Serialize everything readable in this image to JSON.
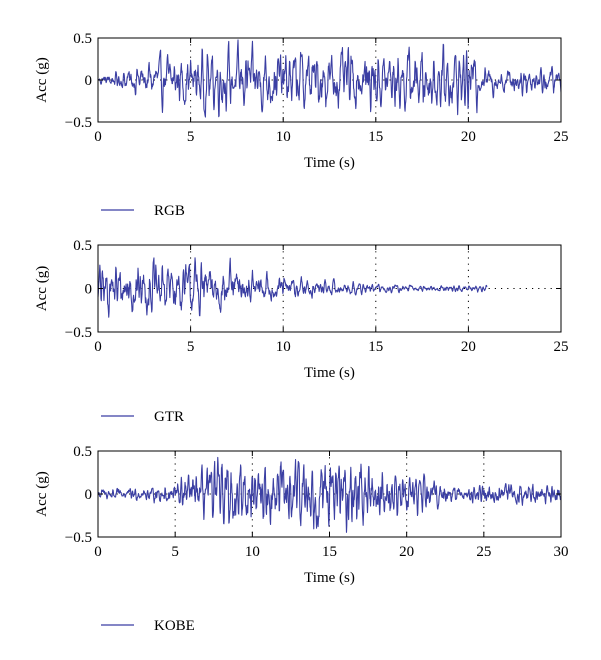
{
  "chart_data": [
    {
      "type": "line",
      "series": [
        {
          "name": "RGB",
          "color": "#3b3fa3",
          "duration": 25,
          "amplitude_profile": "uniform",
          "peak": 0.5
        }
      ],
      "xlabel": "Time (s)",
      "ylabel": "Acc (g)",
      "xlim": [
        0,
        25
      ],
      "ylim": [
        -0.5,
        0.5
      ],
      "xticks": [
        "0",
        "5",
        "10",
        "15",
        "20",
        "25"
      ],
      "yticks": [
        "0.5",
        "0",
        "−0.5"
      ],
      "grid": "dotted-vertical",
      "legend": "below"
    },
    {
      "type": "line",
      "series": [
        {
          "name": "GTR",
          "color": "#3b3fa3",
          "duration": 21,
          "amplitude_profile": "decaying",
          "peak": 0.45
        }
      ],
      "xlabel": "Time (s)",
      "ylabel": "Acc (g)",
      "xlim": [
        0,
        25
      ],
      "ylim": [
        -0.5,
        0.5
      ],
      "xticks": [
        "0",
        "5",
        "10",
        "15",
        "20",
        "25"
      ],
      "yticks": [
        "0.5",
        "0",
        "−0.5"
      ],
      "grid": "dotted-vertical",
      "legend": "below"
    },
    {
      "type": "line",
      "series": [
        {
          "name": "KOBE",
          "color": "#3b3fa3",
          "duration": 30,
          "amplitude_profile": "central-burst",
          "peak": 0.5
        }
      ],
      "xlabel": "Time (s)",
      "ylabel": "Acc (g)",
      "xlim": [
        0,
        30
      ],
      "ylim": [
        -0.5,
        0.5
      ],
      "xticks": [
        "0",
        "5",
        "10",
        "15",
        "20",
        "25",
        "30"
      ],
      "yticks": [
        "0.5",
        "0",
        "−0.5"
      ],
      "grid": "dotted-vertical",
      "legend": "below"
    }
  ]
}
